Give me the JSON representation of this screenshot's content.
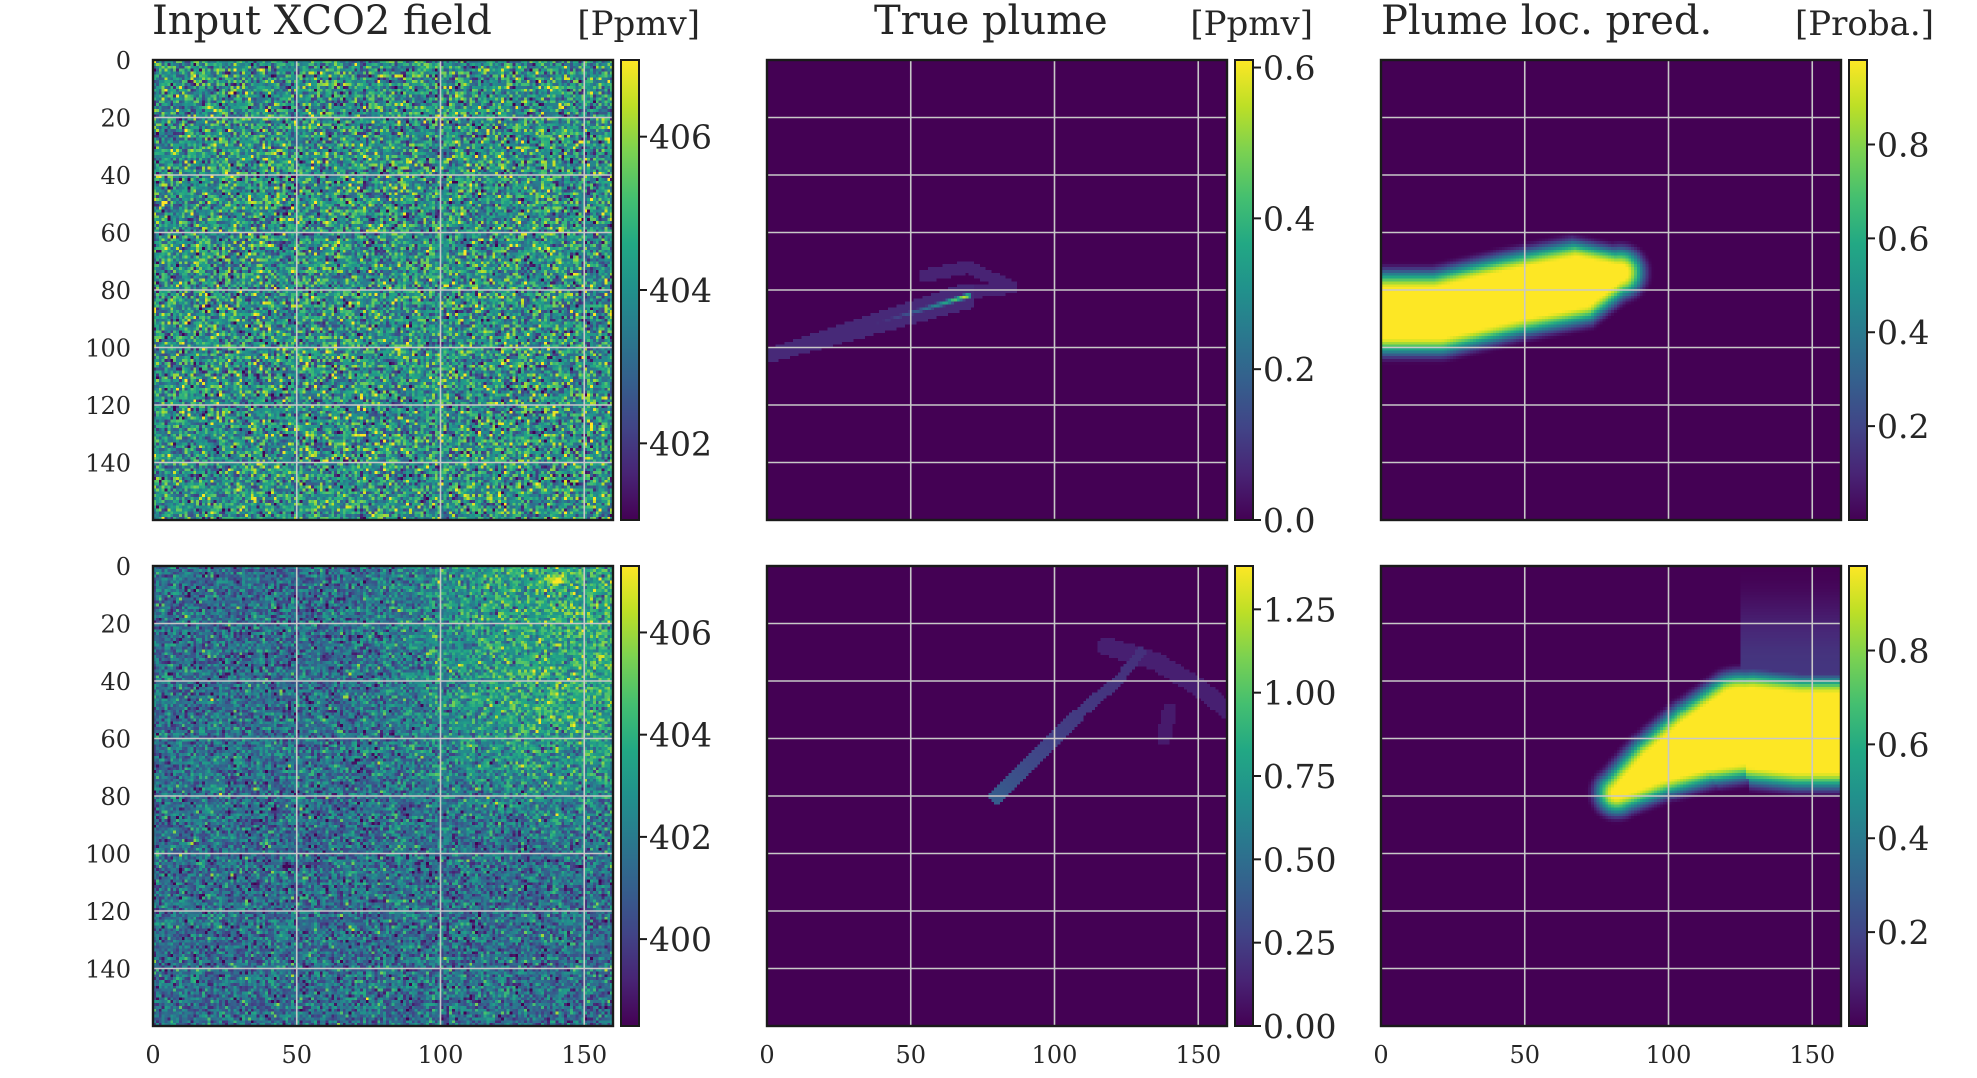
{
  "figure": {
    "columns": [
      {
        "title": "Input XCO2 field",
        "unit": "[Ppmv]"
      },
      {
        "title": "True plume",
        "unit": "[Ppmv]"
      },
      {
        "title": "Plume loc. pred.",
        "unit": "[Proba.]"
      }
    ],
    "x_ticks": [
      "0",
      "50",
      "100",
      "150"
    ],
    "y_ticks": [
      "0",
      "20",
      "40",
      "60",
      "80",
      "100",
      "120",
      "140"
    ]
  },
  "chart_data": [
    {
      "type": "heatmap",
      "row": 1,
      "column": 1,
      "field": "input_xco2",
      "title": "Input XCO2 field",
      "unit": "[Ppmv]",
      "xlim": [
        0,
        160
      ],
      "ylim": [
        160,
        0
      ],
      "grid": true,
      "colormap": "viridis",
      "clim": [
        401.0,
        407.0
      ],
      "colorbar_ticks": [
        "402",
        "404",
        "406"
      ],
      "background_mean": 404.0,
      "noise_std": 1.3
    },
    {
      "type": "heatmap",
      "row": 1,
      "column": 2,
      "field": "true_plume",
      "title": "True plume",
      "unit": "[Ppmv]",
      "xlim": [
        0,
        160
      ],
      "ylim": [
        160,
        0
      ],
      "grid": true,
      "colormap": "viridis",
      "clim": [
        0.0,
        0.61
      ],
      "colorbar_ticks": [
        "0.0",
        "0.2",
        "0.4",
        "0.6"
      ],
      "plume_source": [
        70,
        82
      ],
      "plume_extent": [
        [
          0,
          104
        ],
        [
          85,
          79
        ]
      ],
      "peak_value": 0.6
    },
    {
      "type": "heatmap",
      "row": 1,
      "column": 3,
      "field": "plume_probability",
      "title": "Plume loc. pred.",
      "unit": "[Proba.]",
      "xlim": [
        0,
        160
      ],
      "ylim": [
        160,
        0
      ],
      "grid": true,
      "colormap": "viridis",
      "clim": [
        0.0,
        0.98
      ],
      "colorbar_ticks": [
        "0.2",
        "0.4",
        "0.6",
        "0.8"
      ],
      "region_extent": [
        [
          0,
          90
        ],
        [
          85,
          74
        ]
      ]
    },
    {
      "type": "heatmap",
      "row": 2,
      "column": 1,
      "field": "input_xco2",
      "xlim": [
        0,
        160
      ],
      "ylim": [
        160,
        0
      ],
      "grid": true,
      "colormap": "viridis",
      "clim": [
        398.3,
        407.3
      ],
      "colorbar_ticks": [
        "400",
        "402",
        "404",
        "406"
      ],
      "background_mean": 401.5,
      "noise_std": 1.4,
      "enhanced_region": [
        [
          95,
          0
        ],
        [
          160,
          80
        ]
      ],
      "bright_spot": [
        140,
        5
      ]
    },
    {
      "type": "heatmap",
      "row": 2,
      "column": 2,
      "field": "true_plume",
      "xlim": [
        0,
        160
      ],
      "ylim": [
        160,
        0
      ],
      "grid": true,
      "colormap": "viridis",
      "clim": [
        0.0,
        1.38
      ],
      "colorbar_ticks": [
        "0.00",
        "0.25",
        "0.50",
        "0.75",
        "1.00",
        "1.25"
      ],
      "plume_source": [
        80,
        80
      ],
      "plume_extent": [
        [
          80,
          80
        ],
        [
          160,
          25
        ]
      ]
    },
    {
      "type": "heatmap",
      "row": 2,
      "column": 3,
      "field": "plume_probability",
      "xlim": [
        0,
        160
      ],
      "ylim": [
        160,
        0
      ],
      "grid": true,
      "colormap": "viridis",
      "clim": [
        0.0,
        0.98
      ],
      "colorbar_ticks": [
        "0.2",
        "0.4",
        "0.6",
        "0.8"
      ],
      "region_extent": [
        [
          80,
          80
        ],
        [
          160,
          40
        ]
      ]
    }
  ]
}
